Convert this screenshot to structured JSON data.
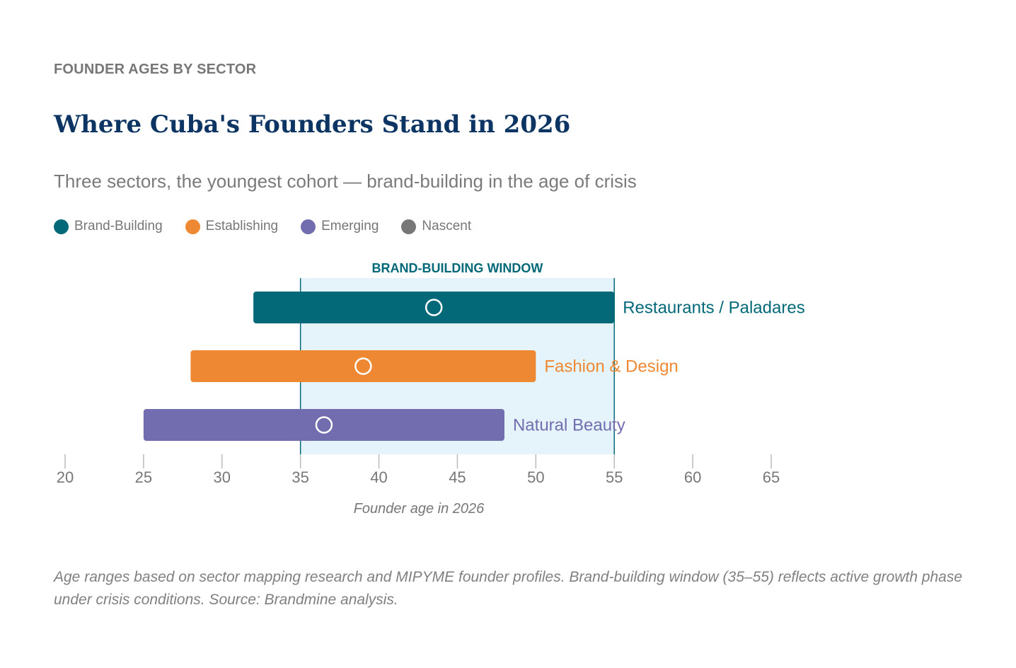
{
  "eyebrow": "FOUNDER AGES BY SECTOR",
  "title": "Where Cuba's Founders Stand in 2026",
  "subtitle": "Three sectors, the youngest cohort — brand-building in the age of crisis",
  "legend": [
    {
      "label": "Brand-Building",
      "color": "#036978"
    },
    {
      "label": "Establishing",
      "color": "#ee8832"
    },
    {
      "label": "Emerging",
      "color": "#716dae"
    },
    {
      "label": "Nascent",
      "color": "#777777"
    }
  ],
  "note": "Age ranges based on sector mapping research and MIPYME founder profiles. Brand-building window (35–55) reflects active growth phase under crisis conditions. Source: Brandmine analysis.",
  "chart_data": {
    "type": "range-bar",
    "xlabel": "Founder age in 2026",
    "xlim": [
      20,
      65
    ],
    "xticks": [
      20,
      25,
      30,
      35,
      40,
      45,
      50,
      55,
      60,
      65
    ],
    "grid": false,
    "window": {
      "label": "BRAND-BUILDING WINDOW",
      "start": 35,
      "end": 55,
      "color": "#e5f4fa"
    },
    "series": [
      {
        "name": "Restaurants / Paladares",
        "start": 32,
        "end": 55,
        "marker": 43.5,
        "color": "#036978"
      },
      {
        "name": "Fashion & Design",
        "start": 28,
        "end": 50,
        "marker": 39,
        "color": "#ee8832"
      },
      {
        "name": "Natural Beauty",
        "start": 25,
        "end": 48,
        "marker": 36.5,
        "color": "#716dae"
      }
    ]
  }
}
